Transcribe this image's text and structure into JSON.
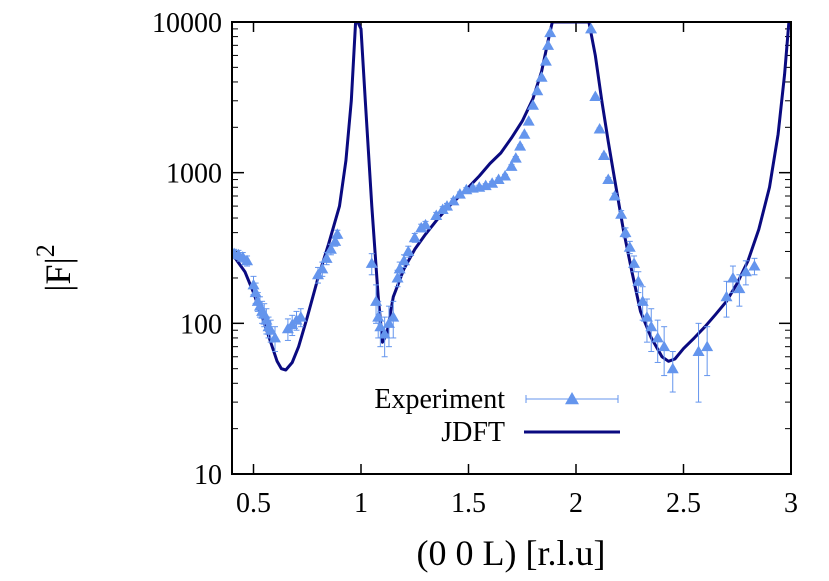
{
  "colors": {
    "experiment": "#6495ed",
    "theory": "#0a0a80",
    "axis": "#000000"
  },
  "chart_data": {
    "type": "line",
    "title": "",
    "xlabel": "(0 0 L) [r.l.u]",
    "ylabel": "|F|",
    "ylabel_superscript": "2",
    "xlim": [
      0.4,
      3.0
    ],
    "ylim": [
      10,
      10000
    ],
    "yscale": "log",
    "legend_position": "bottom-center",
    "x_ticks": [
      0.5,
      1,
      1.5,
      2,
      2.5,
      3
    ],
    "x_tick_labels": [
      "0.5",
      "1",
      "1.5",
      "2",
      "2.5",
      "3"
    ],
    "y_ticks": [
      10,
      100,
      1000,
      10000
    ],
    "y_tick_labels": [
      "10",
      "100",
      "1000",
      "10000"
    ],
    "series": [
      {
        "name": "Experiment",
        "style": "triangles with error bars",
        "points": [
          {
            "x": 0.41,
            "y": 290,
            "err": 20
          },
          {
            "x": 0.43,
            "y": 285,
            "err": 20
          },
          {
            "x": 0.45,
            "y": 275,
            "err": 20
          },
          {
            "x": 0.47,
            "y": 260,
            "err": 20
          },
          {
            "x": 0.5,
            "y": 180,
            "err": 25
          },
          {
            "x": 0.51,
            "y": 160,
            "err": 25
          },
          {
            "x": 0.52,
            "y": 140,
            "err": 20
          },
          {
            "x": 0.53,
            "y": 130,
            "err": 20
          },
          {
            "x": 0.54,
            "y": 120,
            "err": 20
          },
          {
            "x": 0.55,
            "y": 115,
            "err": 20
          },
          {
            "x": 0.56,
            "y": 105,
            "err": 20
          },
          {
            "x": 0.57,
            "y": 95,
            "err": 15
          },
          {
            "x": 0.58,
            "y": 90,
            "err": 15
          },
          {
            "x": 0.6,
            "y": 80,
            "err": 15
          },
          {
            "x": 0.66,
            "y": 92,
            "err": 15
          },
          {
            "x": 0.68,
            "y": 98,
            "err": 15
          },
          {
            "x": 0.7,
            "y": 105,
            "err": 15
          },
          {
            "x": 0.72,
            "y": 110,
            "err": 15
          },
          {
            "x": 0.8,
            "y": 210,
            "err": 25
          },
          {
            "x": 0.82,
            "y": 230,
            "err": 25
          },
          {
            "x": 0.84,
            "y": 270,
            "err": 25
          },
          {
            "x": 0.86,
            "y": 310,
            "err": 25
          },
          {
            "x": 0.88,
            "y": 350,
            "err": 25
          },
          {
            "x": 0.89,
            "y": 390,
            "err": 25
          },
          {
            "x": 1.05,
            "y": 250,
            "err": 40
          },
          {
            "x": 1.07,
            "y": 140,
            "err": 40
          },
          {
            "x": 1.08,
            "y": 110,
            "err": 30
          },
          {
            "x": 1.09,
            "y": 95,
            "err": 25
          },
          {
            "x": 1.11,
            "y": 85,
            "err": 25
          },
          {
            "x": 1.13,
            "y": 100,
            "err": 30
          },
          {
            "x": 1.15,
            "y": 110,
            "err": 30
          },
          {
            "x": 1.17,
            "y": 200,
            "err": 25
          },
          {
            "x": 1.18,
            "y": 230,
            "err": 25
          },
          {
            "x": 1.2,
            "y": 260,
            "err": 25
          },
          {
            "x": 1.22,
            "y": 300,
            "err": 25
          },
          {
            "x": 1.25,
            "y": 370,
            "err": 25
          },
          {
            "x": 1.28,
            "y": 430,
            "err": 25
          },
          {
            "x": 1.3,
            "y": 450,
            "err": 25
          },
          {
            "x": 1.35,
            "y": 520,
            "err": 25
          },
          {
            "x": 1.38,
            "y": 570,
            "err": 25
          },
          {
            "x": 1.4,
            "y": 600,
            "err": 25
          },
          {
            "x": 1.43,
            "y": 650,
            "err": 25
          },
          {
            "x": 1.46,
            "y": 720,
            "err": 25
          },
          {
            "x": 1.49,
            "y": 770,
            "err": 25
          },
          {
            "x": 1.52,
            "y": 790,
            "err": 25
          },
          {
            "x": 1.55,
            "y": 800,
            "err": 25
          },
          {
            "x": 1.58,
            "y": 820,
            "err": 25
          },
          {
            "x": 1.61,
            "y": 850,
            "err": 25
          },
          {
            "x": 1.64,
            "y": 900,
            "err": 25
          },
          {
            "x": 1.67,
            "y": 950,
            "err": 25
          },
          {
            "x": 1.7,
            "y": 1100,
            "err": 30
          },
          {
            "x": 1.72,
            "y": 1250,
            "err": 30
          },
          {
            "x": 1.74,
            "y": 1500,
            "err": 30
          },
          {
            "x": 1.76,
            "y": 1800,
            "err": 30
          },
          {
            "x": 1.78,
            "y": 2200,
            "err": 30
          },
          {
            "x": 1.8,
            "y": 2800,
            "err": 30
          },
          {
            "x": 1.82,
            "y": 3500,
            "err": 30
          },
          {
            "x": 1.84,
            "y": 4300,
            "err": 30
          },
          {
            "x": 1.86,
            "y": 5500,
            "err": 30
          },
          {
            "x": 1.87,
            "y": 7000,
            "err": 30
          },
          {
            "x": 1.88,
            "y": 8500,
            "err": 30
          },
          {
            "x": 2.07,
            "y": 9000,
            "err": 30
          },
          {
            "x": 2.09,
            "y": 3200,
            "err": 30
          },
          {
            "x": 2.11,
            "y": 1950,
            "err": 30
          },
          {
            "x": 2.13,
            "y": 1300,
            "err": 30
          },
          {
            "x": 2.15,
            "y": 900,
            "err": 30
          },
          {
            "x": 2.18,
            "y": 700,
            "err": 30
          },
          {
            "x": 2.21,
            "y": 530,
            "err": 30
          },
          {
            "x": 2.23,
            "y": 400,
            "err": 30
          },
          {
            "x": 2.25,
            "y": 320,
            "err": 30
          },
          {
            "x": 2.27,
            "y": 250,
            "err": 30
          },
          {
            "x": 2.29,
            "y": 190,
            "err": 30
          },
          {
            "x": 2.31,
            "y": 140,
            "err": 35
          },
          {
            "x": 2.33,
            "y": 110,
            "err": 35
          },
          {
            "x": 2.35,
            "y": 95,
            "err": 30
          },
          {
            "x": 2.38,
            "y": 80,
            "err": 25
          },
          {
            "x": 2.41,
            "y": 70,
            "err": 25
          },
          {
            "x": 2.45,
            "y": 50,
            "err": 15
          },
          {
            "x": 2.57,
            "y": 65,
            "err": 35
          },
          {
            "x": 2.61,
            "y": 70,
            "err": 25
          },
          {
            "x": 2.7,
            "y": 150,
            "err": 40
          },
          {
            "x": 2.73,
            "y": 200,
            "err": 40
          },
          {
            "x": 2.76,
            "y": 170,
            "err": 40
          },
          {
            "x": 2.79,
            "y": 220,
            "err": 40
          },
          {
            "x": 2.83,
            "y": 240,
            "err": 30
          }
        ]
      },
      {
        "name": "JDFT",
        "style": "solid line",
        "points": [
          {
            "x": 0.4,
            "y": 290
          },
          {
            "x": 0.46,
            "y": 220
          },
          {
            "x": 0.5,
            "y": 160
          },
          {
            "x": 0.55,
            "y": 100
          },
          {
            "x": 0.58,
            "y": 75
          },
          {
            "x": 0.61,
            "y": 56
          },
          {
            "x": 0.63,
            "y": 50
          },
          {
            "x": 0.65,
            "y": 49
          },
          {
            "x": 0.68,
            "y": 55
          },
          {
            "x": 0.71,
            "y": 70
          },
          {
            "x": 0.75,
            "y": 110
          },
          {
            "x": 0.8,
            "y": 200
          },
          {
            "x": 0.85,
            "y": 340
          },
          {
            "x": 0.9,
            "y": 600
          },
          {
            "x": 0.93,
            "y": 1200
          },
          {
            "x": 0.955,
            "y": 3000
          },
          {
            "x": 0.975,
            "y": 10000
          },
          {
            "x": 0.985,
            "y": 10000
          },
          {
            "x": 1.0,
            "y": 9000
          },
          {
            "x": 1.02,
            "y": 3000
          },
          {
            "x": 1.05,
            "y": 600
          },
          {
            "x": 1.08,
            "y": 150
          },
          {
            "x": 1.1,
            "y": 75
          },
          {
            "x": 1.12,
            "y": 85
          },
          {
            "x": 1.15,
            "y": 150
          },
          {
            "x": 1.2,
            "y": 230
          },
          {
            "x": 1.25,
            "y": 310
          },
          {
            "x": 1.3,
            "y": 390
          },
          {
            "x": 1.35,
            "y": 480
          },
          {
            "x": 1.4,
            "y": 580
          },
          {
            "x": 1.45,
            "y": 680
          },
          {
            "x": 1.5,
            "y": 800
          },
          {
            "x": 1.55,
            "y": 950
          },
          {
            "x": 1.6,
            "y": 1150
          },
          {
            "x": 1.65,
            "y": 1350
          },
          {
            "x": 1.7,
            "y": 1700
          },
          {
            "x": 1.75,
            "y": 2200
          },
          {
            "x": 1.8,
            "y": 3100
          },
          {
            "x": 1.84,
            "y": 4700
          },
          {
            "x": 1.87,
            "y": 7500
          },
          {
            "x": 1.89,
            "y": 10000
          },
          {
            "x": 2.06,
            "y": 10000
          },
          {
            "x": 2.09,
            "y": 6000
          },
          {
            "x": 2.12,
            "y": 3000
          },
          {
            "x": 2.15,
            "y": 1600
          },
          {
            "x": 2.18,
            "y": 900
          },
          {
            "x": 2.22,
            "y": 420
          },
          {
            "x": 2.26,
            "y": 220
          },
          {
            "x": 2.3,
            "y": 120
          },
          {
            "x": 2.35,
            "y": 80
          },
          {
            "x": 2.4,
            "y": 60
          },
          {
            "x": 2.43,
            "y": 56
          },
          {
            "x": 2.46,
            "y": 58
          },
          {
            "x": 2.5,
            "y": 68
          },
          {
            "x": 2.55,
            "y": 80
          },
          {
            "x": 2.6,
            "y": 95
          },
          {
            "x": 2.65,
            "y": 115
          },
          {
            "x": 2.7,
            "y": 140
          },
          {
            "x": 2.75,
            "y": 185
          },
          {
            "x": 2.8,
            "y": 260
          },
          {
            "x": 2.85,
            "y": 420
          },
          {
            "x": 2.9,
            "y": 800
          },
          {
            "x": 2.94,
            "y": 1800
          },
          {
            "x": 2.97,
            "y": 4500
          },
          {
            "x": 2.99,
            "y": 10000
          }
        ]
      }
    ]
  }
}
